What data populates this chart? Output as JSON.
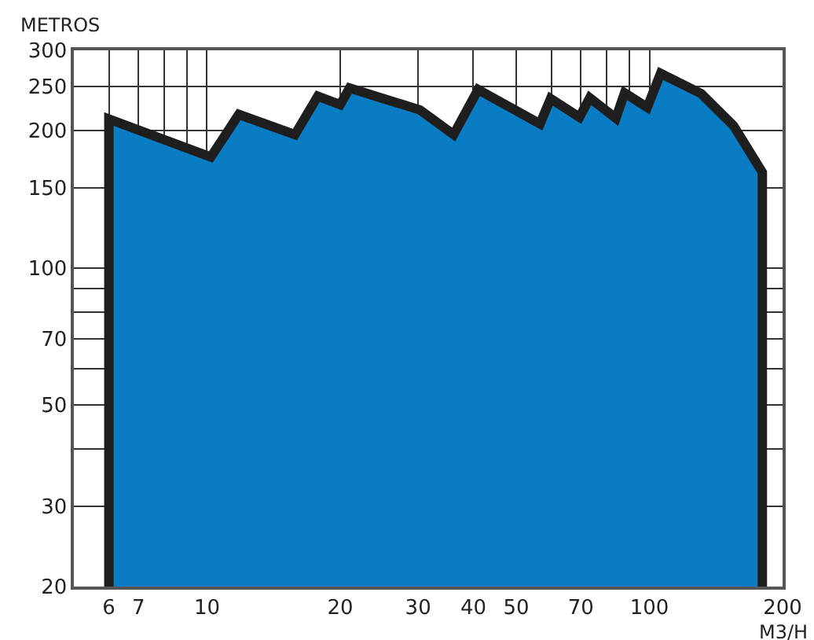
{
  "chart_data": {
    "type": "area",
    "xlabel": "M3/H",
    "ylabel": "METROS",
    "log": "xy",
    "grid": true,
    "marker": "none",
    "xlim": [
      5,
      200
    ],
    "ylim": [
      20,
      300
    ],
    "xticks": [
      6,
      7,
      {
        "value": 8,
        "label": null
      },
      {
        "value": 9,
        "label": null
      },
      10,
      20,
      30,
      40,
      50,
      {
        "value": 60,
        "label": null
      },
      70,
      {
        "value": 80,
        "label": null
      },
      {
        "value": 90,
        "label": null
      },
      100,
      200
    ],
    "yticks": [
      20,
      30,
      {
        "value": 40,
        "label": null
      },
      50,
      {
        "value": 60,
        "label": null
      },
      70,
      {
        "value": 80,
        "label": null
      },
      {
        "value": 90,
        "label": null
      },
      100,
      150,
      200,
      250,
      300
    ],
    "series": [
      {
        "color": "#0a7cc4",
        "x": [
          6,
          6,
          10.2,
          11.8,
          15.8,
          17.8,
          20,
          21,
          30.3,
          36.1,
          41,
          56.6,
          59.8,
          69.5,
          73.3,
          84,
          87.9,
          98.9,
          106,
          131,
          155,
          180,
          180
        ],
        "values": [
          20,
          212,
          175,
          217,
          196,
          238,
          228,
          248,
          222,
          196,
          246,
          207,
          235,
          214,
          236,
          213,
          242,
          225,
          267,
          241,
          205,
          162,
          20
        ]
      }
    ]
  }
}
